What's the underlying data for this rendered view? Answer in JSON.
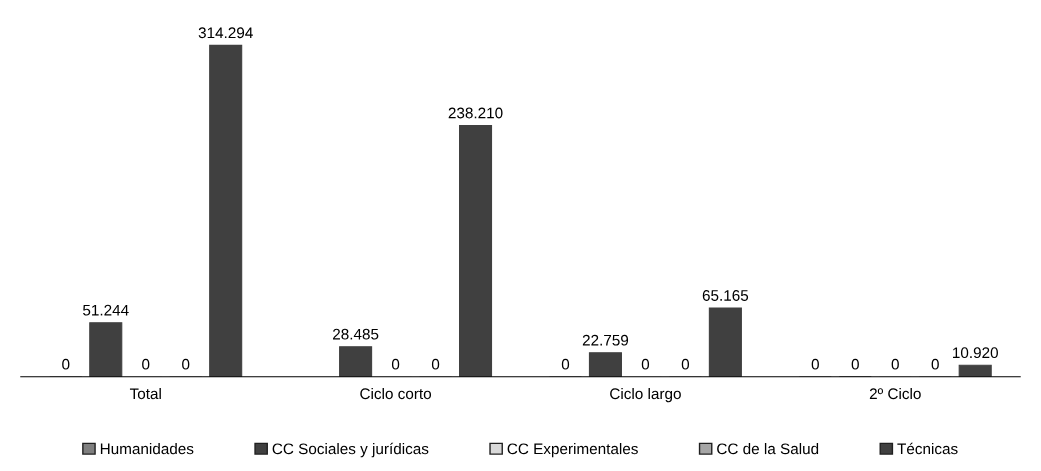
{
  "chart_data": {
    "type": "bar",
    "categories": [
      "Total",
      "Ciclo corto",
      "Ciclo largo",
      "2º Ciclo"
    ],
    "series": [
      {
        "name": "Humanidades",
        "color": "#7f7f7f",
        "values": [
          0,
          null,
          0,
          0
        ],
        "value_labels": [
          "0",
          null,
          "0",
          "0"
        ]
      },
      {
        "name": "CC Sociales y jurídicas",
        "color": "#404040",
        "values": [
          51244,
          28485,
          22759,
          0
        ],
        "value_labels": [
          "51.244",
          "28.485",
          "22.759",
          "0"
        ]
      },
      {
        "name": "CC Experimentales",
        "color": "#d9d9d9",
        "values": [
          0,
          0,
          0,
          0
        ],
        "value_labels": [
          "0",
          "0",
          "0",
          "0"
        ]
      },
      {
        "name": "CC de la Salud",
        "color": "#a6a6a6",
        "values": [
          0,
          0,
          0,
          0
        ],
        "value_labels": [
          "0",
          "0",
          "0",
          "0"
        ]
      },
      {
        "name": "Técnicas",
        "color": "#404040",
        "values": [
          314294,
          238210,
          65165,
          10920
        ],
        "value_labels": [
          "314.294",
          "238.210",
          "65.165",
          "10.920"
        ]
      }
    ],
    "legend": "bottom",
    "grid": false
  }
}
